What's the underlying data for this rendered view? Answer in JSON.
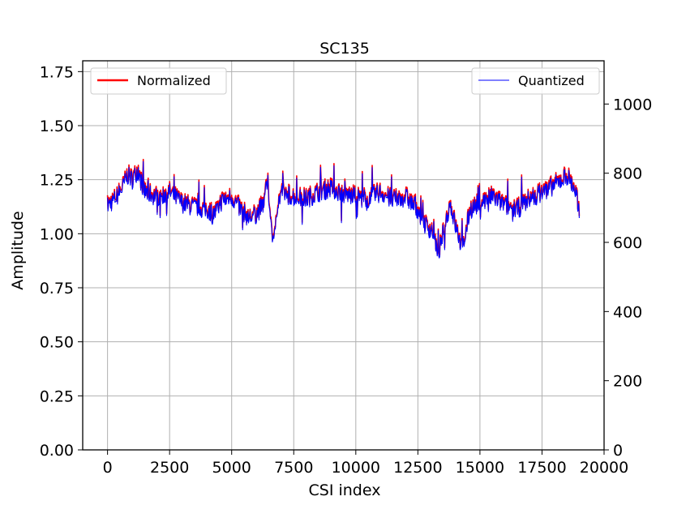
{
  "chart_data": {
    "type": "line",
    "title": "SC135",
    "xlabel": "CSI index",
    "ylabel": "Amplitude",
    "y2label": "",
    "xlim": [
      -1000,
      20000
    ],
    "ylim": [
      0,
      1.8
    ],
    "y2lim": [
      0,
      1125
    ],
    "xticks": [
      0,
      2500,
      5000,
      7500,
      10000,
      12500,
      15000,
      17500,
      20000
    ],
    "yticks": [
      0.0,
      0.25,
      0.5,
      0.75,
      1.0,
      1.25,
      1.5,
      1.75
    ],
    "y2ticks": [
      0,
      200,
      400,
      600,
      800,
      1000
    ],
    "xtick_labels": [
      "0",
      "2500",
      "5000",
      "7500",
      "10000",
      "12500",
      "15000",
      "17500",
      "20000"
    ],
    "ytick_labels": [
      "0.00",
      "0.25",
      "0.50",
      "0.75",
      "1.00",
      "1.25",
      "1.50",
      "1.75"
    ],
    "y2tick_labels": [
      "0",
      "200",
      "400",
      "600",
      "800",
      "1000"
    ],
    "grid": true,
    "series": [
      {
        "name": "Normalized",
        "axis": "left",
        "color": "#ff0000",
        "x": [
          0,
          300,
          600,
          800,
          1000,
          1200,
          1500,
          2000,
          2500,
          3000,
          3500,
          4000,
          4300,
          4600,
          5000,
          5300,
          5700,
          6000,
          6300,
          6450,
          6600,
          6700,
          6800,
          7000,
          7500,
          8000,
          8500,
          9000,
          9500,
          10000,
          10500,
          11000,
          11500,
          12000,
          12500,
          12800,
          13100,
          13300,
          13500,
          13800,
          14000,
          14300,
          14600,
          15000,
          15500,
          16000,
          16500,
          17000,
          17500,
          17800,
          18200,
          18500,
          18800,
          19000
        ],
        "values": [
          1.14,
          1.17,
          1.22,
          1.28,
          1.26,
          1.3,
          1.2,
          1.18,
          1.2,
          1.15,
          1.13,
          1.12,
          1.1,
          1.16,
          1.18,
          1.13,
          1.08,
          1.1,
          1.15,
          1.25,
          1.05,
          0.95,
          1.12,
          1.2,
          1.18,
          1.17,
          1.2,
          1.22,
          1.19,
          1.18,
          1.17,
          1.2,
          1.16,
          1.18,
          1.12,
          1.05,
          1.02,
          0.9,
          1.0,
          1.15,
          1.05,
          0.93,
          1.12,
          1.15,
          1.18,
          1.14,
          1.12,
          1.17,
          1.2,
          1.22,
          1.25,
          1.28,
          1.22,
          1.12
        ]
      },
      {
        "name": "Quantized",
        "axis": "right",
        "color": "#0000ff",
        "x": [
          0,
          300,
          600,
          800,
          1000,
          1200,
          1500,
          2000,
          2500,
          3000,
          3500,
          4000,
          4300,
          4600,
          5000,
          5300,
          5700,
          6000,
          6300,
          6450,
          6600,
          6700,
          6800,
          7000,
          7500,
          8000,
          8500,
          9000,
          9500,
          10000,
          10500,
          11000,
          11500,
          12000,
          12500,
          12800,
          13100,
          13300,
          13500,
          13800,
          14000,
          14300,
          14600,
          15000,
          15500,
          16000,
          16500,
          17000,
          17500,
          17800,
          18200,
          18500,
          18800,
          19000
        ],
        "values": [
          706,
          725,
          756,
          793,
          781,
          806,
          744,
          731,
          744,
          713,
          700,
          694,
          681,
          719,
          731,
          700,
          669,
          681,
          713,
          775,
          650,
          588,
          694,
          744,
          731,
          725,
          744,
          756,
          738,
          731,
          725,
          744,
          719,
          731,
          694,
          650,
          631,
          558,
          619,
          713,
          650,
          576,
          694,
          713,
          731,
          706,
          694,
          725,
          744,
          756,
          775,
          793,
          756,
          694
        ]
      }
    ],
    "legend": [
      {
        "label": "Normalized",
        "placement": "upper-left"
      },
      {
        "label": "Quantized",
        "placement": "upper-right"
      }
    ]
  }
}
